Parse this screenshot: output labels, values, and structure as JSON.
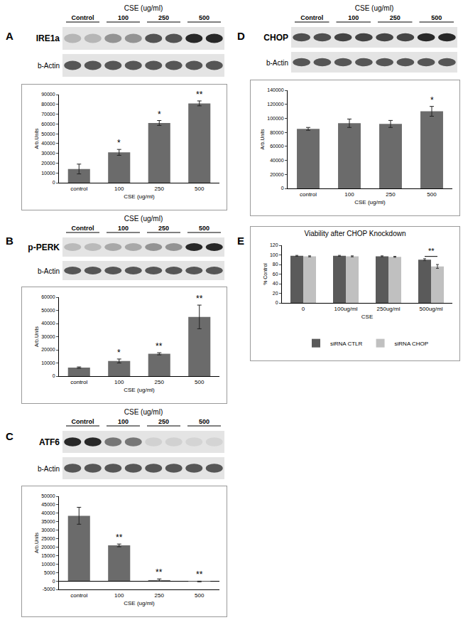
{
  "chart_data": [
    {
      "panel": "A",
      "type": "bar",
      "blot": {
        "header": "CSE (ug/ml)",
        "lanes": [
          "Control",
          "100",
          "250",
          "500"
        ],
        "bands": [
          "IRE1a",
          "b-Actin"
        ]
      },
      "categories": [
        "control",
        "100",
        "250",
        "500"
      ],
      "values": [
        14000,
        31000,
        61000,
        81000
      ],
      "errors": [
        5000,
        3000,
        2500,
        2500
      ],
      "color": "#6b6b6b",
      "x_label": "CSE (ug/ml)",
      "y_label": "Arb.Units",
      "ylim": [
        0,
        90000
      ],
      "yticks": [
        0,
        10000,
        20000,
        30000,
        40000,
        50000,
        60000,
        70000,
        80000,
        90000
      ],
      "annotations": [
        {
          "category": "100",
          "text": "*"
        },
        {
          "category": "250",
          "text": "*"
        },
        {
          "category": "500",
          "text": "**"
        }
      ],
      "grid": false
    },
    {
      "panel": "B",
      "type": "bar",
      "blot": {
        "header": "CSE (ug/ml)",
        "lanes": [
          "Control",
          "100",
          "250",
          "500"
        ],
        "bands": [
          "p-PERK",
          "b-Actin"
        ]
      },
      "categories": [
        "control",
        "100",
        "250",
        "500"
      ],
      "values": [
        6500,
        11500,
        17000,
        45000
      ],
      "errors": [
        500,
        1500,
        800,
        9000
      ],
      "color": "#6b6b6b",
      "x_label": "CSE (ug/ml)",
      "y_label": "Arb.Units",
      "ylim": [
        0,
        60000
      ],
      "yticks": [
        0,
        10000,
        20000,
        30000,
        40000,
        50000,
        60000
      ],
      "annotations": [
        {
          "category": "100",
          "text": "*"
        },
        {
          "category": "250",
          "text": "**"
        },
        {
          "category": "500",
          "text": "**"
        }
      ],
      "grid": false
    },
    {
      "panel": "C",
      "type": "bar",
      "blot": {
        "header": "CSE (ug/ml)",
        "lanes": [
          "Control",
          "100",
          "250",
          "500"
        ],
        "bands": [
          "ATF6",
          "b-Actin"
        ]
      },
      "categories": [
        "control",
        "100",
        "250",
        "500"
      ],
      "values": [
        38500,
        21000,
        500,
        -300
      ],
      "errors": [
        5000,
        800,
        700,
        200
      ],
      "color": "#6b6b6b",
      "x_label": "CSE (ug/ml)",
      "y_label": "Arb.Units",
      "ylim": [
        -5000,
        50000
      ],
      "yticks": [
        -5000,
        0,
        5000,
        10000,
        15000,
        20000,
        25000,
        30000,
        35000,
        40000,
        45000,
        50000
      ],
      "annotations": [
        {
          "category": "100",
          "text": "**"
        },
        {
          "category": "250",
          "text": "**"
        },
        {
          "category": "500",
          "text": "**"
        }
      ],
      "grid": false
    },
    {
      "panel": "D",
      "type": "bar",
      "blot": {
        "header": "CSE (ug/ml)",
        "lanes": [
          "Control",
          "100",
          "250",
          "500"
        ],
        "bands": [
          "CHOP",
          "b-Actin"
        ]
      },
      "categories": [
        "control",
        "100",
        "250",
        "500"
      ],
      "values": [
        85000,
        93000,
        92000,
        110000
      ],
      "errors": [
        2000,
        6000,
        5000,
        7000
      ],
      "color": "#6b6b6b",
      "x_label": "CSE (ug/ml)",
      "y_label": "Arb.Units",
      "ylim": [
        0,
        140000
      ],
      "yticks": [
        0,
        20000,
        40000,
        60000,
        80000,
        100000,
        120000,
        140000
      ],
      "annotations": [
        {
          "category": "500",
          "text": "*"
        }
      ],
      "grid": false
    },
    {
      "panel": "E",
      "type": "bar",
      "title": "Viability after CHOP Knockdown",
      "categories": [
        "0",
        "100ug/ml",
        "250ug/ml",
        "500ug/ml"
      ],
      "series": [
        {
          "name": "siRNA CTLR",
          "color": "#5a5a5a",
          "values": [
            98,
            98,
            97,
            90
          ],
          "errors": [
            1,
            1,
            1,
            2
          ]
        },
        {
          "name": "siRNA CHOP",
          "color": "#c0c0c0",
          "values": [
            97,
            97,
            96,
            76
          ],
          "errors": [
            1,
            1,
            1,
            4
          ]
        }
      ],
      "x_label": "CSE",
      "y_label": "% Control",
      "ylim": [
        0,
        120
      ],
      "yticks": [
        0,
        20,
        40,
        60,
        80,
        100,
        120
      ],
      "annotations": [
        {
          "category": "500ug/ml",
          "text": "**"
        }
      ],
      "legend": "bottom",
      "grid": false
    }
  ]
}
